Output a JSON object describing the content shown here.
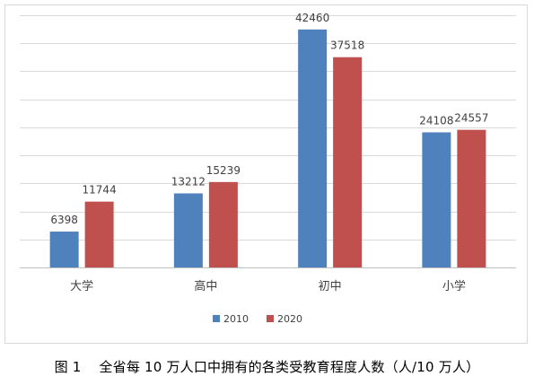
{
  "caption": "图 1    全省每 10 万人口中拥有的各类受教育程度人数（人/10 万人）",
  "chart_data": {
    "type": "bar",
    "categories": [
      "大学",
      "高中",
      "初中",
      "小学"
    ],
    "series": [
      {
        "name": "2010",
        "values": [
          6398,
          13212,
          42460,
          24108
        ],
        "color": "#4f81bd"
      },
      {
        "name": "2020",
        "values": [
          11744,
          15239,
          37518,
          24557
        ],
        "color": "#c0504d"
      }
    ],
    "ylim": [
      0,
      45000
    ],
    "gridlines": true,
    "legend": "bottom-center"
  }
}
